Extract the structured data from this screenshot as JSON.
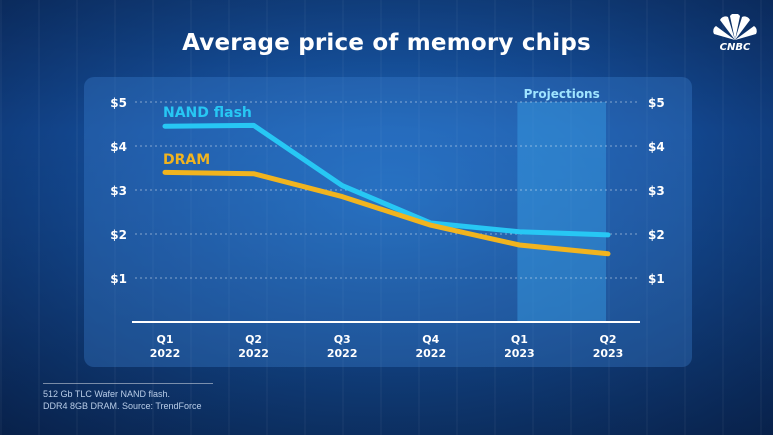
{
  "brand": {
    "logo": "CNBC"
  },
  "colors": {
    "nand": "#27c7f4",
    "dram": "#f1b41f",
    "text": "#ffffff",
    "projection": "#3aa0e6"
  },
  "chart_data": {
    "type": "line",
    "title": "Average price of memory chips",
    "categories": [
      {
        "q": "Q1",
        "y": "2022"
      },
      {
        "q": "Q2",
        "y": "2022"
      },
      {
        "q": "Q3",
        "y": "2022"
      },
      {
        "q": "Q4",
        "y": "2022"
      },
      {
        "q": "Q1",
        "y": "2023"
      },
      {
        "q": "Q2",
        "y": "2023"
      }
    ],
    "series": [
      {
        "name": "NAND flash",
        "color": "#27c7f4",
        "values": [
          4.45,
          4.47,
          3.1,
          2.25,
          2.05,
          1.98
        ]
      },
      {
        "name": "DRAM",
        "color": "#f1b41f",
        "values": [
          3.4,
          3.37,
          2.85,
          2.2,
          1.75,
          1.55
        ]
      }
    ],
    "yticks": [
      "$5",
      "$4",
      "$3",
      "$2",
      "$1"
    ],
    "ytick_values": [
      5,
      4,
      3,
      2,
      1
    ],
    "ylim": [
      0,
      5
    ],
    "grid": true,
    "projection": {
      "label": "Projections",
      "from_index": 4,
      "to_index": 5
    }
  },
  "footnote": {
    "line1": "512 Gb TLC Wafer NAND flash.",
    "line2": "DDR4 8GB DRAM. Source: TrendForce"
  }
}
